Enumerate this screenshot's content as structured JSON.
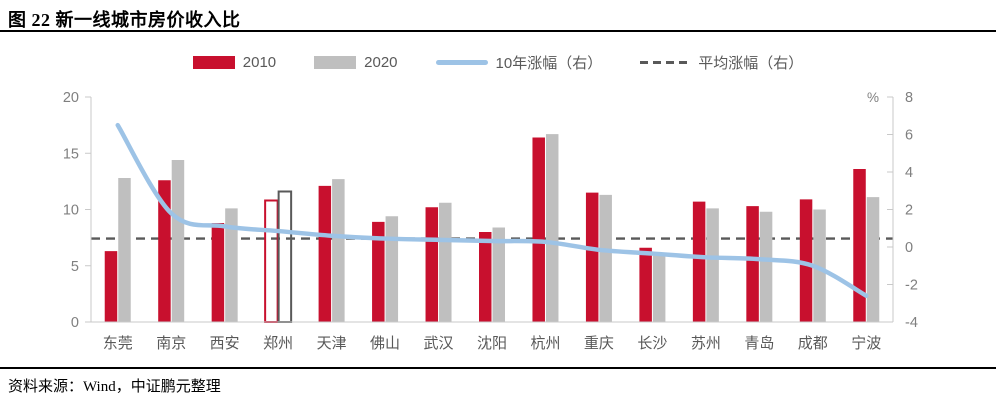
{
  "title": "图 22  新一线城市房价收入比",
  "source_note": "资料来源：Wind，中证鹏元整理",
  "colors": {
    "bar_2010": "#C8102E",
    "bar_2020": "#BFBFBF",
    "line_growth": "#9DC3E6",
    "avg_dash": "#595959",
    "hollow_2010_stroke": "#C8102E",
    "hollow_2020_stroke": "#595959",
    "axis_line": "#C9C9C9",
    "axis_text": "#7F7F7F",
    "category_text": "#595959"
  },
  "legend": {
    "items": [
      {
        "label": "2010",
        "swatch": "bar",
        "color_key": "bar_2010"
      },
      {
        "label": "2020",
        "swatch": "bar",
        "color_key": "bar_2020"
      },
      {
        "label": "10年涨幅（右）",
        "swatch": "line",
        "color_key": "line_growth"
      },
      {
        "label": "平均涨幅（右）",
        "swatch": "dashed",
        "color_key": "avg_dash"
      }
    ]
  },
  "chart_data": {
    "type": "bar",
    "subtype": "grouped bars + line on secondary axis",
    "categories": [
      "东莞",
      "南京",
      "西安",
      "郑州",
      "天津",
      "佛山",
      "武汉",
      "沈阳",
      "杭州",
      "重庆",
      "长沙",
      "苏州",
      "青岛",
      "成都",
      "宁波"
    ],
    "series": [
      {
        "name": "2010",
        "type": "bar",
        "axis": "left",
        "values": [
          6.3,
          12.6,
          8.8,
          10.8,
          12.1,
          8.9,
          10.2,
          8.0,
          16.4,
          11.5,
          6.6,
          10.7,
          10.3,
          10.9,
          13.6
        ]
      },
      {
        "name": "2020",
        "type": "bar",
        "axis": "left",
        "values": [
          12.8,
          14.4,
          10.1,
          11.6,
          12.7,
          9.4,
          10.6,
          8.4,
          16.7,
          11.3,
          5.9,
          10.1,
          9.8,
          10.0,
          11.1
        ]
      },
      {
        "name": "10年涨幅（右）",
        "type": "line",
        "axis": "right",
        "values": [
          6.5,
          1.8,
          1.1,
          0.85,
          0.6,
          0.45,
          0.38,
          0.32,
          0.27,
          -0.15,
          -0.35,
          -0.55,
          -0.65,
          -1.0,
          -2.6
        ]
      },
      {
        "name": "平均涨幅（右）",
        "type": "reference-line",
        "axis": "right",
        "value": 0.45
      }
    ],
    "highlight": {
      "category": "郑州",
      "index": 3,
      "style": "hollow-outlined-bars"
    },
    "left_axis": {
      "min": 0,
      "max": 20,
      "ticks": [
        0,
        5,
        10,
        15,
        20
      ]
    },
    "right_axis": {
      "min": -4,
      "max": 8,
      "ticks": [
        -4,
        -2,
        0,
        2,
        4,
        6,
        8
      ],
      "unit": "%"
    },
    "grid": false,
    "legend_position": "top"
  }
}
